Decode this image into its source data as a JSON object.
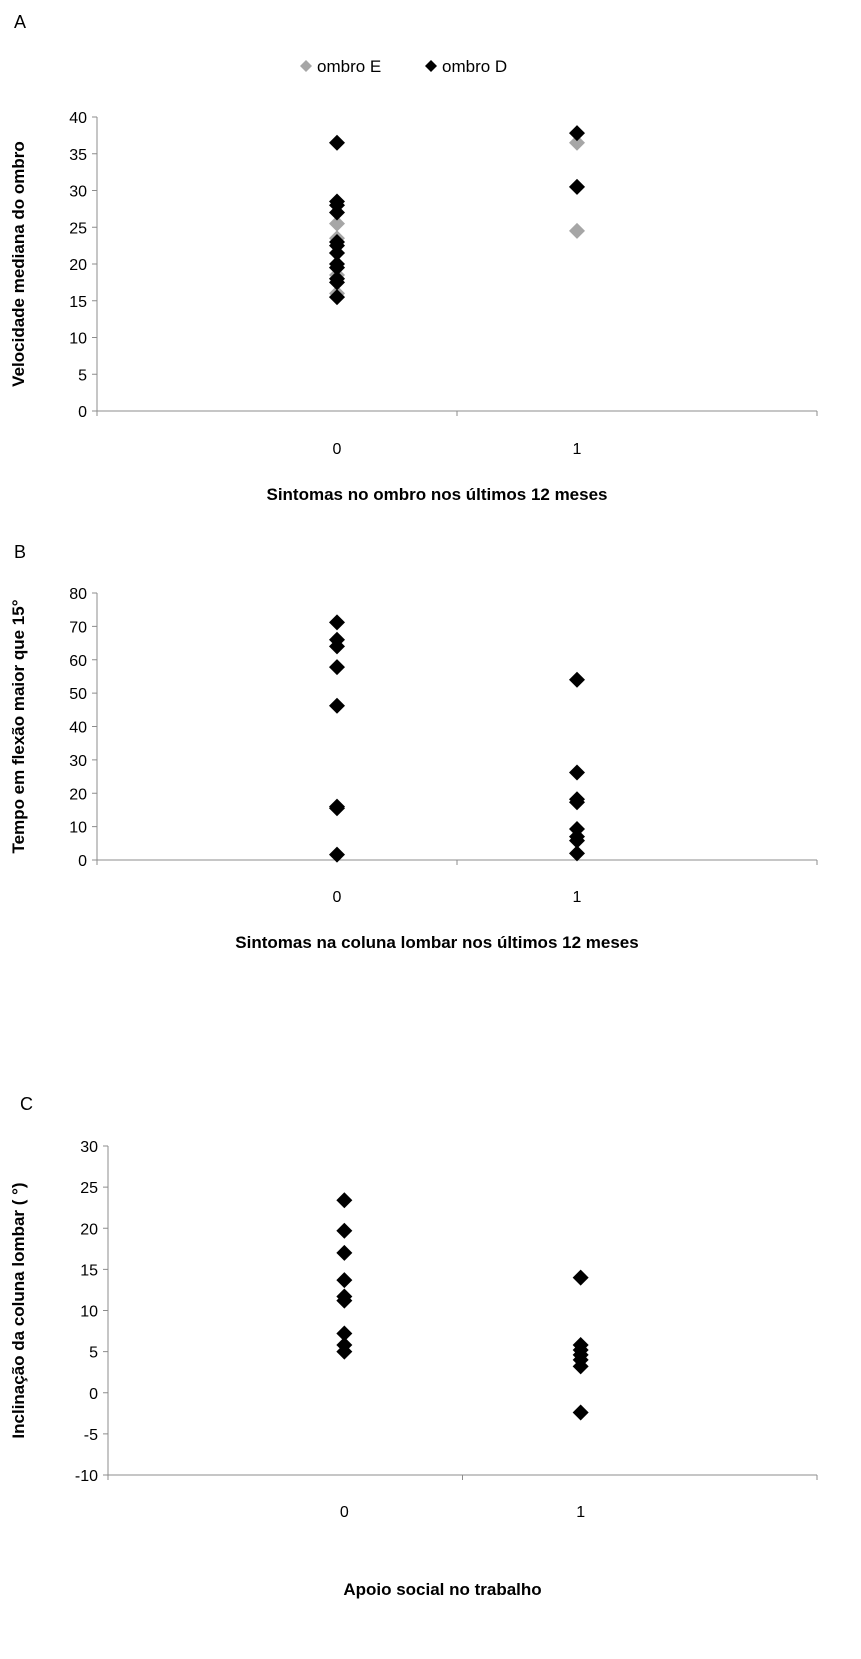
{
  "chart_data": [
    {
      "type": "scatter",
      "panel_label": "A",
      "title": "",
      "xlabel": "Sintomas no ombro nos últimos 12 meses",
      "ylabel": "Velocidade mediana do ombro",
      "categories": [
        "0",
        "1"
      ],
      "xlim": [
        -1,
        2
      ],
      "ylim": [
        0,
        40
      ],
      "yticks": [
        0,
        5,
        10,
        15,
        20,
        25,
        30,
        35,
        40
      ],
      "legend": "top-center",
      "grid": false,
      "series": [
        {
          "name": "ombro E",
          "color": "#a6a6a6",
          "x": [
            0,
            0,
            0,
            0,
            0,
            0,
            0,
            0,
            1,
            1,
            1
          ],
          "y": [
            25.5,
            23.5,
            21.5,
            19.5,
            18.5,
            18,
            16,
            15.5,
            36.5,
            30.5,
            24.5
          ]
        },
        {
          "name": "ombro D",
          "color": "#000000",
          "x": [
            0,
            0,
            0,
            0,
            0,
            0,
            0,
            0,
            0,
            0,
            0,
            0,
            1,
            1
          ],
          "y": [
            36.5,
            28.5,
            28,
            27,
            23,
            22.5,
            21.5,
            20,
            19.5,
            18,
            17.5,
            15.5,
            37.8,
            30.5
          ]
        }
      ]
    },
    {
      "type": "scatter",
      "panel_label": "B",
      "title": "",
      "xlabel": "Sintomas na coluna lombar nos últimos 12 meses",
      "ylabel": "Tempo em flexão maior que 15°",
      "categories": [
        "0",
        "1"
      ],
      "xlim": [
        -1,
        2
      ],
      "ylim": [
        0,
        80
      ],
      "yticks": [
        0,
        10,
        20,
        30,
        40,
        50,
        60,
        70,
        80
      ],
      "grid": false,
      "series": [
        {
          "color": "#000000",
          "x": [
            0,
            0,
            0,
            0,
            0,
            0,
            0,
            0,
            1,
            1,
            1,
            1,
            1,
            1,
            1,
            1
          ],
          "y": [
            71.2,
            66,
            64,
            57.8,
            46.2,
            16,
            15.5,
            1.6,
            54,
            26.2,
            18.2,
            17.3,
            9.3,
            7,
            5.8,
            2
          ]
        }
      ]
    },
    {
      "type": "scatter",
      "panel_label": "C",
      "title": "",
      "xlabel": "Apoio social no trabalho",
      "ylabel": "Inclinação da coluna lombar ( °)",
      "categories": [
        "0",
        "1"
      ],
      "xlim": [
        -1,
        2
      ],
      "ylim": [
        -10,
        30
      ],
      "yticks": [
        -10,
        -5,
        0,
        5,
        10,
        15,
        20,
        25,
        30
      ],
      "grid": false,
      "series": [
        {
          "color": "#000000",
          "x": [
            0,
            0,
            0,
            0,
            0,
            0,
            0,
            0,
            0,
            1,
            1,
            1,
            1,
            1,
            1,
            1
          ],
          "y": [
            23.4,
            19.7,
            17,
            13.7,
            11.7,
            11.2,
            7.2,
            5.8,
            5,
            14,
            5.8,
            5.2,
            4.6,
            4,
            3.2,
            -2.4
          ]
        }
      ]
    }
  ]
}
